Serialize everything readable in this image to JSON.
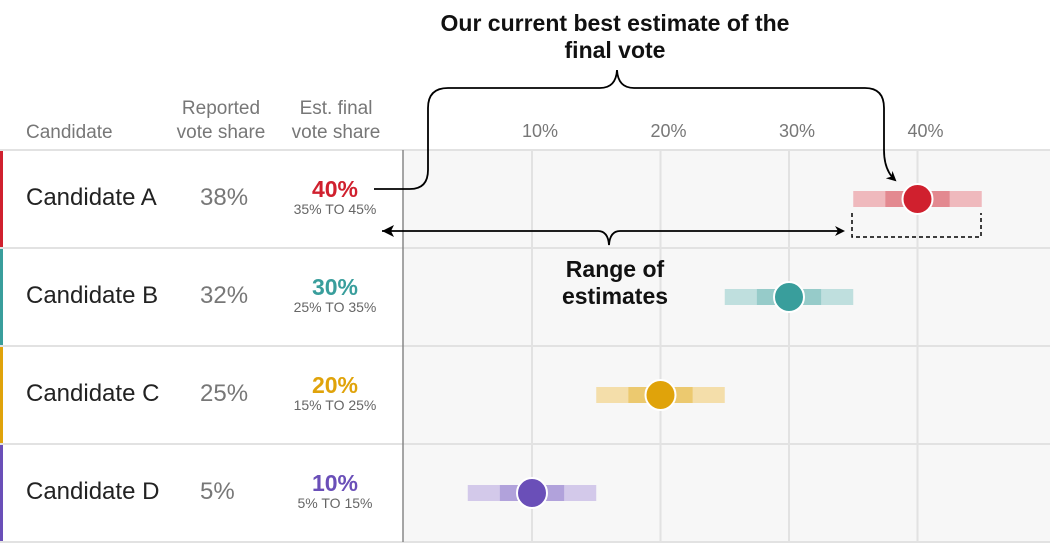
{
  "headers": {
    "candidate": "Candidate",
    "reported": "Reported vote share",
    "estimated": "Est. final vote share"
  },
  "annotations": {
    "best_estimate": "Our current best estimate of the final vote",
    "range": "Range of estimates"
  },
  "chart_data": {
    "type": "dot-range",
    "xlim": [
      0,
      50
    ],
    "ticks": [
      10,
      20,
      30,
      40
    ],
    "tick_labels": [
      "10%",
      "20%",
      "30%",
      "40%"
    ],
    "grid": true,
    "rows": [
      {
        "name": "Candidate A",
        "reported": "38%",
        "estimate": 40,
        "estimate_label": "40%",
        "low": 35,
        "high": 45,
        "inner_low": 37.5,
        "inner_high": 42.5,
        "range_label": "35% TO 45%",
        "color": "#d0202e",
        "light": "#efb9bd",
        "mid": "#e38990"
      },
      {
        "name": "Candidate B",
        "reported": "32%",
        "estimate": 30,
        "estimate_label": "30%",
        "low": 25,
        "high": 35,
        "inner_low": 27.5,
        "inner_high": 32.5,
        "range_label": "25% TO 35%",
        "color": "#399e9c",
        "light": "#bfdfde",
        "mid": "#96cbc9"
      },
      {
        "name": "Candidate C",
        "reported": "25%",
        "estimate": 20,
        "estimate_label": "20%",
        "low": 15,
        "high": 25,
        "inner_low": 17.5,
        "inner_high": 22.5,
        "range_label": "15% TO 25%",
        "color": "#e0a30a",
        "light": "#f4deaa",
        "mid": "#ecc96f"
      },
      {
        "name": "Candidate D",
        "reported": "5%",
        "estimate": 10,
        "estimate_label": "10%",
        "low": 5,
        "high": 15,
        "inner_low": 7.5,
        "inner_high": 12.5,
        "range_label": "5% TO 15%",
        "color": "#6a4fb8",
        "light": "#d3c9ea",
        "mid": "#b1a2db"
      }
    ]
  }
}
